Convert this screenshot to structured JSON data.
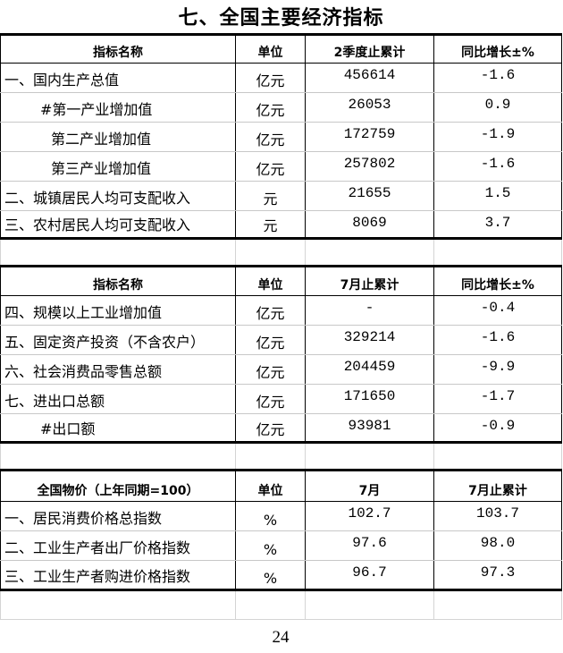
{
  "title": "七、全国主要经济指标",
  "section1": {
    "headers": [
      "指标名称",
      "单位",
      "2季度止累计",
      "同比增长±%"
    ],
    "rows": [
      {
        "name": "一、国内生产总值",
        "unit": "亿元",
        "value": "456614",
        "growth": "-1.6"
      },
      {
        "name": "#第一产业增加值",
        "unit": "亿元",
        "value": "26053",
        "growth": "0.9"
      },
      {
        "name": "第二产业增加值",
        "unit": "亿元",
        "value": "172759",
        "growth": "-1.9"
      },
      {
        "name": "第三产业增加值",
        "unit": "亿元",
        "value": "257802",
        "growth": "-1.6"
      },
      {
        "name": "二、城镇居民人均可支配收入",
        "unit": "元",
        "value": "21655",
        "growth": "1.5"
      },
      {
        "name": "三、农村居民人均可支配收入",
        "unit": "元",
        "value": "8069",
        "growth": "3.7"
      }
    ]
  },
  "section2": {
    "headers": [
      "指标名称",
      "单位",
      "7月止累计",
      "同比增长±%"
    ],
    "rows": [
      {
        "name": "四、规模以上工业增加值",
        "unit": "亿元",
        "value": "-",
        "growth": "-0.4"
      },
      {
        "name": "五、固定资产投资（不含农户）",
        "unit": "亿元",
        "value": "329214",
        "growth": "-1.6"
      },
      {
        "name": "六、社会消费品零售总额",
        "unit": "亿元",
        "value": "204459",
        "growth": "-9.9"
      },
      {
        "name": "七、进出口总额",
        "unit": "亿元",
        "value": "171650",
        "growth": "-1.7"
      },
      {
        "name": "#出口额",
        "unit": "亿元",
        "value": "93981",
        "growth": "-0.9"
      }
    ]
  },
  "section3": {
    "headers": [
      "全国物价（上年同期=100）",
      "单位",
      "7月",
      "7月止累计"
    ],
    "rows": [
      {
        "name": "一、居民消费价格总指数",
        "unit": "%",
        "value": "102.7",
        "growth": "103.7"
      },
      {
        "name": "二、工业生产者出厂价格指数",
        "unit": "%",
        "value": "97.6",
        "growth": "98.0"
      },
      {
        "name": "三、工业生产者购进价格指数",
        "unit": "%",
        "value": "96.7",
        "growth": "97.3"
      }
    ]
  },
  "page_number": "24"
}
